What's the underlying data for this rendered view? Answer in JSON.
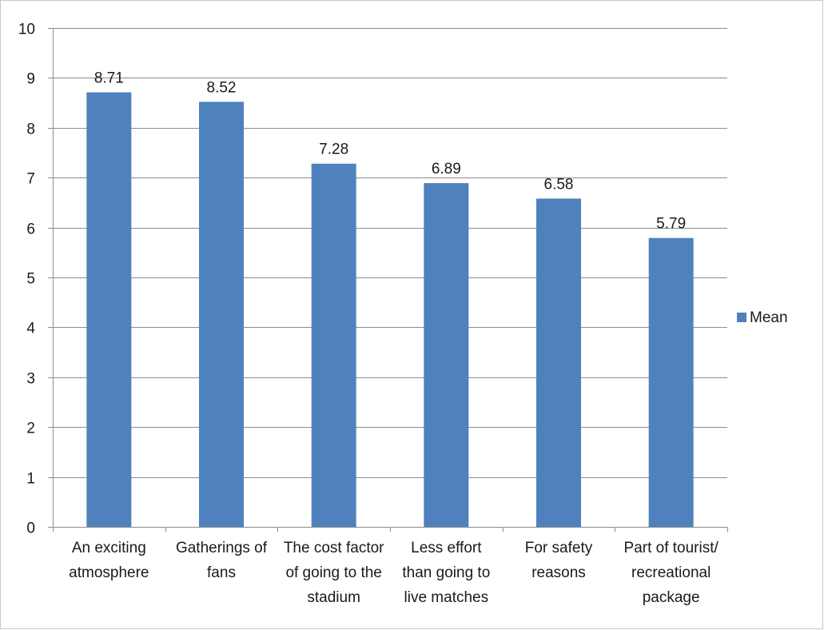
{
  "chart_data": {
    "type": "bar",
    "categories": [
      [
        "An exciting",
        "atmosphere"
      ],
      [
        "Gatherings of",
        "fans"
      ],
      [
        "The cost factor",
        "of going to the",
        "stadium"
      ],
      [
        "Less effort",
        "than going to",
        "live matches"
      ],
      [
        "For safety",
        "reasons"
      ],
      [
        "Part of tourist/",
        "recreational",
        "package"
      ]
    ],
    "series": [
      {
        "name": "Mean",
        "values": [
          8.71,
          8.52,
          7.28,
          6.89,
          6.58,
          5.79
        ],
        "color": "#4F81BD"
      }
    ],
    "data_labels": [
      "8.71",
      "8.52",
      "7.28",
      "6.89",
      "6.58",
      "5.79"
    ],
    "ylim": [
      0,
      10
    ],
    "yticks": [
      0,
      1,
      2,
      3,
      4,
      5,
      6,
      7,
      8,
      9,
      10
    ],
    "grid": true,
    "legend": "right"
  }
}
